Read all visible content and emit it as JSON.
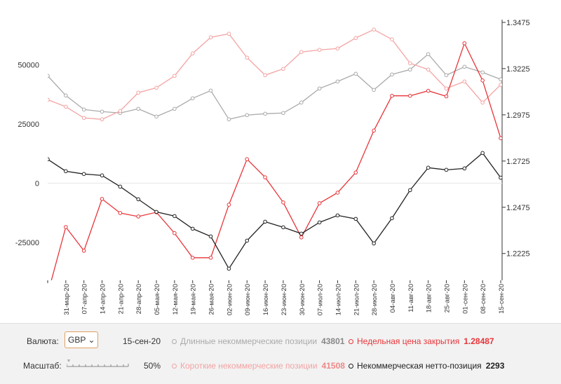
{
  "chart_data": {
    "type": "line",
    "categories": [
      null,
      "31-мар-20",
      "07-апр-20",
      "14-апр-20",
      "21-апр-20",
      "28-апр-20",
      "05-мая-20",
      "12-мая-20",
      "19-мая-20",
      "26-мая-20",
      "02-июн-20",
      "09-июн-20",
      "16-июн-20",
      "23-июн-20",
      "30-июн-20",
      "07-июл-20",
      "14-июл-20",
      "21-июл-20",
      "28-июл-20",
      "04-авг-20",
      "11-авг-20",
      "18-авг-20",
      "25-авг-20",
      "01-сен-20",
      "08-сен-20",
      "15-сен-20"
    ],
    "ylim": [
      -41000,
      69000
    ],
    "yticks": [
      -25000,
      0,
      25000,
      50000
    ],
    "y2lim": [
      1.208,
      1.349
    ],
    "y2ticks": [
      1.2225,
      1.2475,
      1.2725,
      1.2975,
      1.3225,
      1.3475
    ],
    "series": [
      {
        "name": "Длинные некоммерческие позиции",
        "color": "#aaaaaa",
        "values": [
          45270,
          36980,
          31070,
          30180,
          29590,
          31360,
          28110,
          31360,
          35800,
          39050,
          26920,
          28700,
          29290,
          29590,
          34020,
          39940,
          42900,
          46150,
          39350,
          45860,
          47930,
          54440,
          45560,
          49110,
          46740,
          43801
        ]
      },
      {
        "name": "Короткие некоммерческие позиции",
        "color": "#f4a3a3",
        "values": [
          35210,
          32250,
          27520,
          26920,
          30470,
          38170,
          40240,
          45270,
          54740,
          61540,
          63020,
          52960,
          45560,
          48230,
          55330,
          56220,
          56810,
          61250,
          64800,
          60660,
          50590,
          47930,
          39940,
          42900,
          34020,
          41508
        ]
      },
      {
        "name": "Недельная цена закрытия",
        "color": "#e8353a",
        "axis": "y2",
        "values": [
          1.2006,
          1.2368,
          1.224,
          1.252,
          1.2444,
          1.2425,
          1.2448,
          1.2335,
          1.2202,
          1.2202,
          1.2489,
          1.2735,
          1.2637,
          1.2501,
          1.2312,
          1.2497,
          1.2554,
          1.2663,
          1.289,
          1.3078,
          1.3078,
          1.3105,
          1.3075,
          1.3362,
          1.3161,
          1.28487
        ]
      },
      {
        "name": "Некоммерческая нетто-позиция",
        "color": "#222222",
        "values": [
          10060,
          5030,
          3850,
          3250,
          -1480,
          -6810,
          -12130,
          -13910,
          -19230,
          -22490,
          -36100,
          -24260,
          -16270,
          -18640,
          -21300,
          -16570,
          -13610,
          -15090,
          -25450,
          -14790,
          -2960,
          6510,
          5620,
          6210,
          12720,
          2293
        ]
      }
    ]
  },
  "ui": {
    "currency_label": "Валюта:",
    "currency": "GBP",
    "scale_label": "Масштаб:",
    "scale": "50%"
  }
}
